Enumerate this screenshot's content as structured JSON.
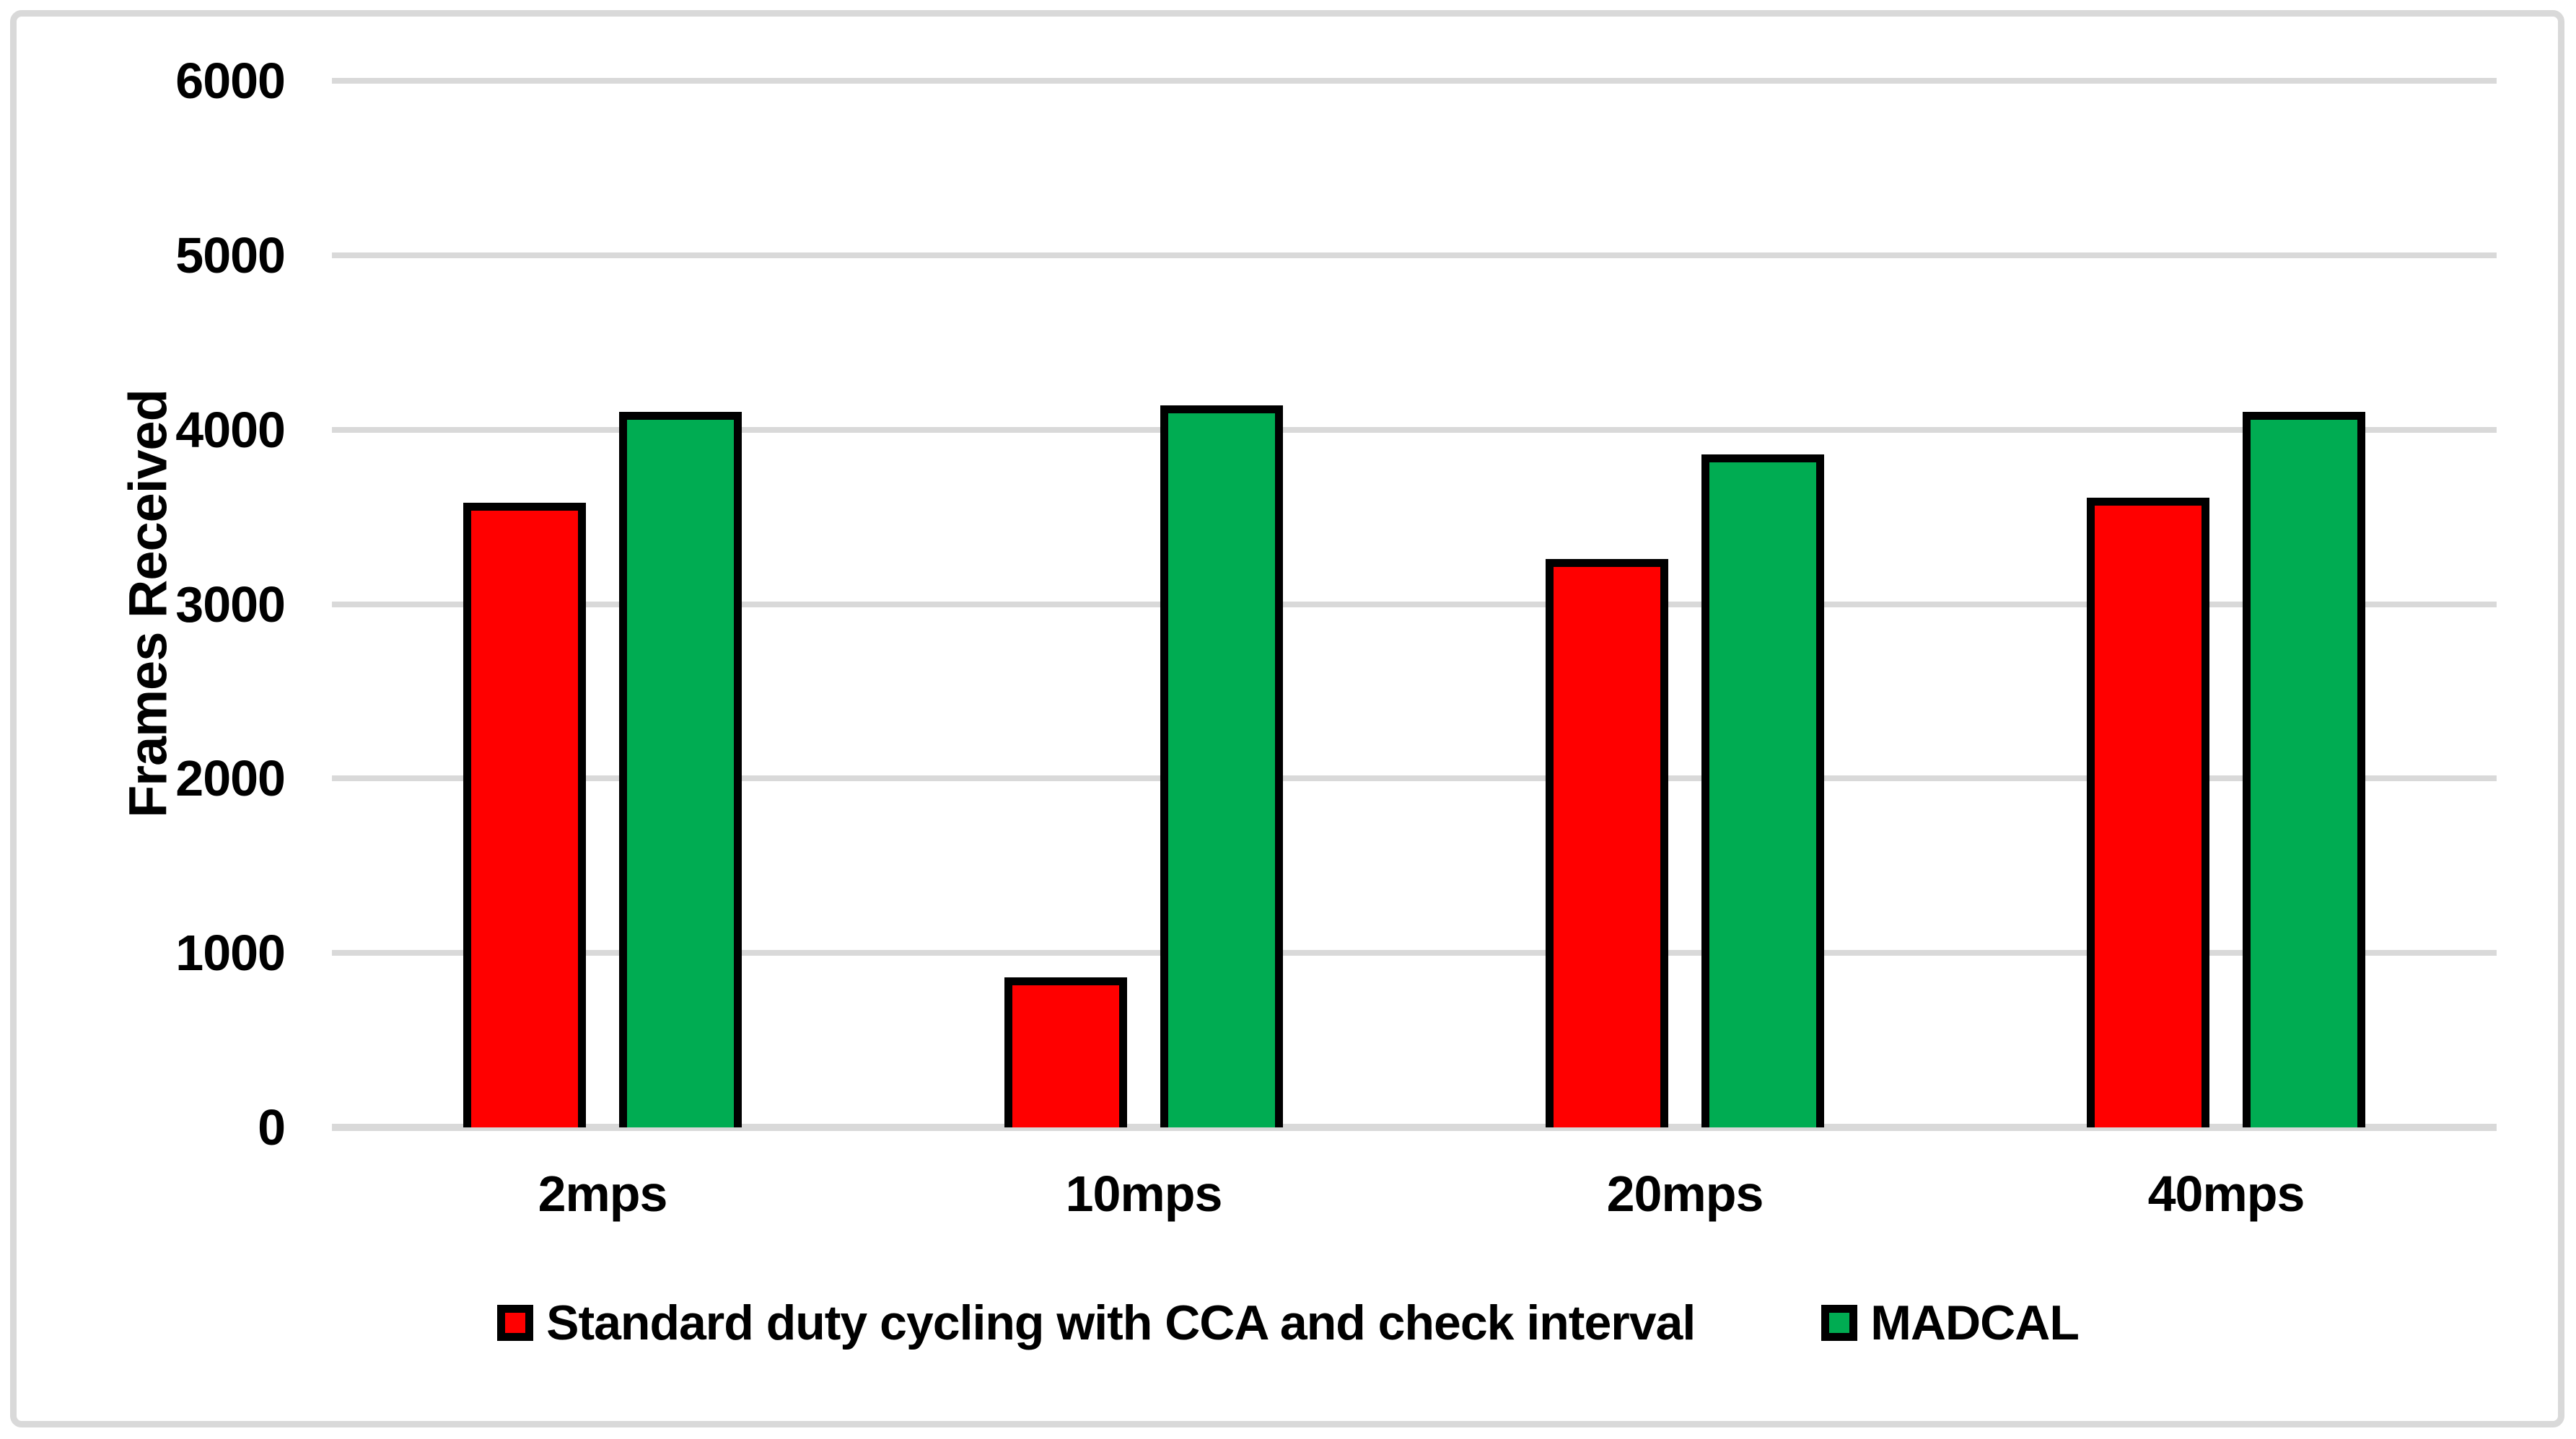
{
  "chart_data": {
    "type": "bar",
    "title": "",
    "xlabel": "",
    "ylabel": "Frames Received",
    "ylim": [
      0,
      6000
    ],
    "yticks": [
      6000,
      5000,
      4000,
      3000,
      2000,
      1000,
      0
    ],
    "grid": true,
    "legend_position": "bottom",
    "categories": [
      "2mps",
      "10mps",
      "20mps",
      "40mps"
    ],
    "series": [
      {
        "name": "Standard duty cycling with CCA and check interval",
        "color": "#FF0000",
        "values": [
          3580,
          860,
          3260,
          3610
        ]
      },
      {
        "name": "MADCAL",
        "color": "#00AC52",
        "values": [
          4100,
          4140,
          3860,
          4100
        ]
      }
    ]
  },
  "colors": {
    "bar_border": "#000000",
    "gridline": "#D9D9D9",
    "frame_border": "#D9D9D9",
    "background": "#FFFFFF"
  }
}
